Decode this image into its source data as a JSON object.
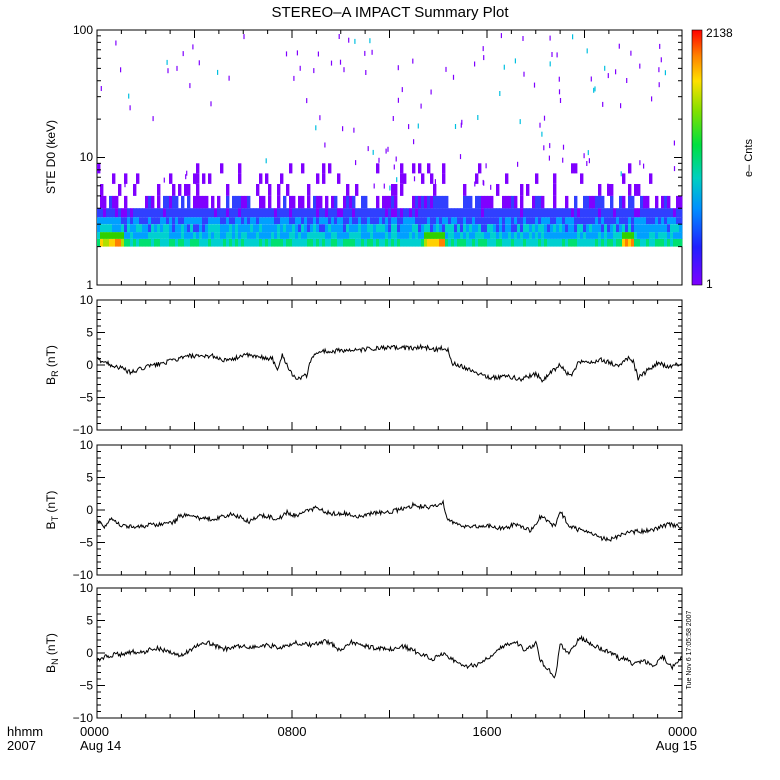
{
  "title": "STEREO–A IMPACT Summary Plot",
  "footer": {
    "hhmm_label": "hhmm",
    "year_label": "2007",
    "start_date": "Aug 14",
    "end_date": "Aug 15"
  },
  "timestamp": "Tue Nov  6 17:05:58 2007",
  "chart_data": [
    {
      "type": "heatmap",
      "id": "ste",
      "ylabel": "STE D0 (keV)",
      "yscale": "log",
      "ylim": [
        1,
        100
      ],
      "yticks": [
        "1",
        "10",
        "100"
      ],
      "xlim": [
        0,
        2400
      ],
      "xticks": [
        "0000",
        "0800",
        "1600",
        "0000"
      ],
      "colorbar": {
        "label": "e– Cnts",
        "min": "1",
        "max": "2138",
        "scale": "log"
      },
      "colormap": [
        "#7f00ff",
        "#3040ff",
        "#00a0ff",
        "#00d0d0",
        "#00e070",
        "#30d000",
        "#b0e000",
        "#ffd000",
        "#ff8000",
        "#ff0000"
      ],
      "energy_levels": [
        2.0,
        2.3,
        2.6,
        3.0,
        3.4,
        4.0,
        5.0,
        6.2,
        7.5,
        9.0
      ],
      "hot_spots": [
        {
          "t_start": 10,
          "t_end": 110,
          "peak": "yellow-orange"
        },
        {
          "t_start": 1340,
          "t_end": 1420,
          "peak": "yellow-orange"
        },
        {
          "t_start": 2150,
          "t_end": 2200,
          "peak": "yellow"
        }
      ]
    },
    {
      "type": "line",
      "id": "br",
      "ylabel": "B",
      "ylabel_sub": "R",
      "ylabel_unit": " (nT)",
      "ylim": [
        -10,
        10
      ],
      "yticks": [
        "10",
        "5",
        "0",
        "−5",
        "−10"
      ],
      "xlim": [
        0,
        2400
      ],
      "x": [
        0,
        30,
        60,
        100,
        140,
        200,
        260,
        320,
        380,
        430,
        470,
        500,
        540,
        600,
        660,
        720,
        740,
        760,
        790,
        820,
        860,
        880,
        920,
        960,
        1000,
        1060,
        1120,
        1180,
        1240,
        1300,
        1340,
        1380,
        1400,
        1420,
        1440,
        1460,
        1500,
        1560,
        1620,
        1680,
        1740,
        1800,
        1830,
        1860,
        1900,
        1940,
        1980,
        2020,
        2060,
        2100,
        2140,
        2180,
        2200,
        2220,
        2260,
        2300,
        2340,
        2400
      ],
      "values": [
        0.9,
        0.5,
        0.0,
        -0.5,
        -1.2,
        -0.3,
        0.2,
        0.8,
        1.4,
        1.2,
        1.5,
        1.0,
        0.6,
        1.6,
        1.2,
        1.0,
        -1.0,
        1.6,
        -0.8,
        -2.2,
        -1.6,
        1.2,
        2.2,
        2.0,
        2.3,
        2.2,
        2.5,
        2.6,
        2.7,
        2.6,
        2.8,
        2.4,
        2.5,
        2.6,
        2.3,
        0.2,
        -0.2,
        -1.2,
        -2.0,
        -1.7,
        -2.2,
        -1.3,
        -2.4,
        -1.2,
        0.0,
        -1.8,
        0.6,
        0.2,
        0.9,
        0.4,
        -0.2,
        1.1,
        0.5,
        -2.0,
        -0.8,
        0.3,
        -0.3,
        0.2
      ]
    },
    {
      "type": "line",
      "id": "bt",
      "ylabel": "B",
      "ylabel_sub": "T",
      "ylabel_unit": " (nT)",
      "ylim": [
        -10,
        10
      ],
      "yticks": [
        "10",
        "5",
        "0",
        "−5",
        "−10"
      ],
      "xlim": [
        0,
        2400
      ],
      "x": [
        0,
        30,
        60,
        100,
        150,
        200,
        260,
        320,
        340,
        380,
        440,
        500,
        560,
        620,
        680,
        740,
        780,
        820,
        860,
        900,
        960,
        1020,
        1080,
        1140,
        1200,
        1260,
        1300,
        1360,
        1400,
        1420,
        1440,
        1480,
        1540,
        1600,
        1660,
        1720,
        1780,
        1820,
        1880,
        1900,
        1940,
        1980,
        2020,
        2060,
        2100,
        2140,
        2180,
        2220,
        2260,
        2300,
        2340,
        2400
      ],
      "values": [
        -1.5,
        -2.5,
        -1.2,
        -2.4,
        -2.6,
        -2.4,
        -2.2,
        -1.8,
        -0.8,
        -1.0,
        -1.4,
        -1.2,
        -0.6,
        -1.8,
        -0.8,
        -1.4,
        -0.4,
        -1.0,
        -0.2,
        0.4,
        -0.6,
        -0.5,
        -1.0,
        -0.4,
        -0.3,
        0.2,
        0.8,
        0.3,
        0.7,
        1.1,
        -1.5,
        -2.3,
        -2.6,
        -2.4,
        -2.9,
        -2.2,
        -3.2,
        -1.0,
        -2.5,
        -0.2,
        -2.6,
        -3.1,
        -3.6,
        -4.2,
        -4.6,
        -4.0,
        -3.5,
        -3.3,
        -3.1,
        -2.8,
        -2.2,
        -2.6
      ]
    },
    {
      "type": "line",
      "id": "bn",
      "ylabel": "B",
      "ylabel_sub": "N",
      "ylabel_unit": " (nT)",
      "ylim": [
        -10,
        10
      ],
      "yticks": [
        "10",
        "5",
        "0",
        "−5",
        "−10"
      ],
      "xlim": [
        0,
        2400
      ],
      "x": [
        0,
        30,
        60,
        100,
        140,
        180,
        240,
        300,
        340,
        400,
        460,
        520,
        580,
        640,
        700,
        760,
        820,
        880,
        940,
        960,
        1000,
        1040,
        1080,
        1140,
        1200,
        1260,
        1300,
        1340,
        1380,
        1420,
        1460,
        1500,
        1560,
        1600,
        1660,
        1720,
        1760,
        1800,
        1820,
        1840,
        1880,
        1900,
        1940,
        1980,
        2020,
        2060,
        2100,
        2140,
        2180,
        2200,
        2240,
        2280,
        2320,
        2360,
        2400
      ],
      "values": [
        -1.2,
        -0.6,
        -0.3,
        -0.2,
        0.2,
        0.0,
        0.8,
        0.2,
        -0.6,
        1.0,
        1.5,
        0.6,
        1.0,
        0.9,
        1.2,
        0.8,
        1.6,
        1.2,
        1.8,
        1.4,
        0.4,
        1.7,
        1.2,
        0.8,
        0.5,
        1.0,
        0.3,
        -0.3,
        -0.9,
        0.0,
        -1.0,
        -2.1,
        -1.8,
        -0.8,
        1.0,
        1.7,
        0.3,
        1.6,
        -1.3,
        -2.0,
        -3.7,
        1.2,
        0.0,
        2.4,
        1.6,
        0.8,
        0.2,
        -0.8,
        -1.0,
        -1.7,
        -1.2,
        -2.0,
        -0.6,
        -2.2,
        -0.6
      ]
    }
  ]
}
